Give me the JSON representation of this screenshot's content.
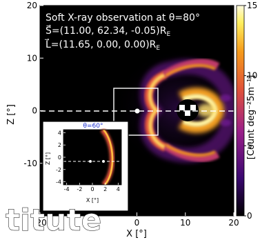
{
  "chart_data": {
    "type": "heatmap",
    "title": "Soft X-ray observation at θ=80°",
    "annotations": [
      "S⃗=(11.00, 62.34, -0.05)R",
      "L⃗=(11.65, 0.00, 0.00)R"
    ],
    "annotation_subscript": "E",
    "xlabel": "X [°]",
    "ylabel": "Z [°]",
    "xlim": [
      -20,
      20
    ],
    "ylim": [
      -20,
      20
    ],
    "xticks": [
      "-20",
      "0",
      "10",
      "20"
    ],
    "yticks": [
      "20",
      "10",
      "0",
      "-10"
    ],
    "colorbar": {
      "label": "[Count deg⁻²5m⁻¹]",
      "range": [
        0,
        15
      ],
      "ticks": [
        "15",
        "10",
        "5",
        "0"
      ],
      "colors": [
        "#000000",
        "#3a0870",
        "#9a1f8a",
        "#e0523a",
        "#f59a1a",
        "#fff060",
        "#fffbe0"
      ]
    },
    "features": {
      "earth_center_x": 11,
      "earth_center_z": 0,
      "observer_marker_x": 0,
      "observer_marker_z": 0,
      "box_x": [
        -5,
        5
      ],
      "box_z": [
        -5,
        5
      ],
      "magnetopause_nose_x": 11,
      "peak_intensity": 15
    },
    "inset": {
      "title": "θ=60°",
      "xlabel": "X [°]",
      "ylabel": "Z [°]",
      "xlim": [
        -4.5,
        4.5
      ],
      "ylim": [
        -4.5,
        4.5
      ],
      "xticks": [
        "-4",
        "-2",
        "0",
        "2",
        "4"
      ],
      "yticks": [
        "4",
        "2",
        "0",
        "-2",
        "-4"
      ],
      "markers_x": [
        0,
        2
      ]
    },
    "watermark": "titute"
  }
}
